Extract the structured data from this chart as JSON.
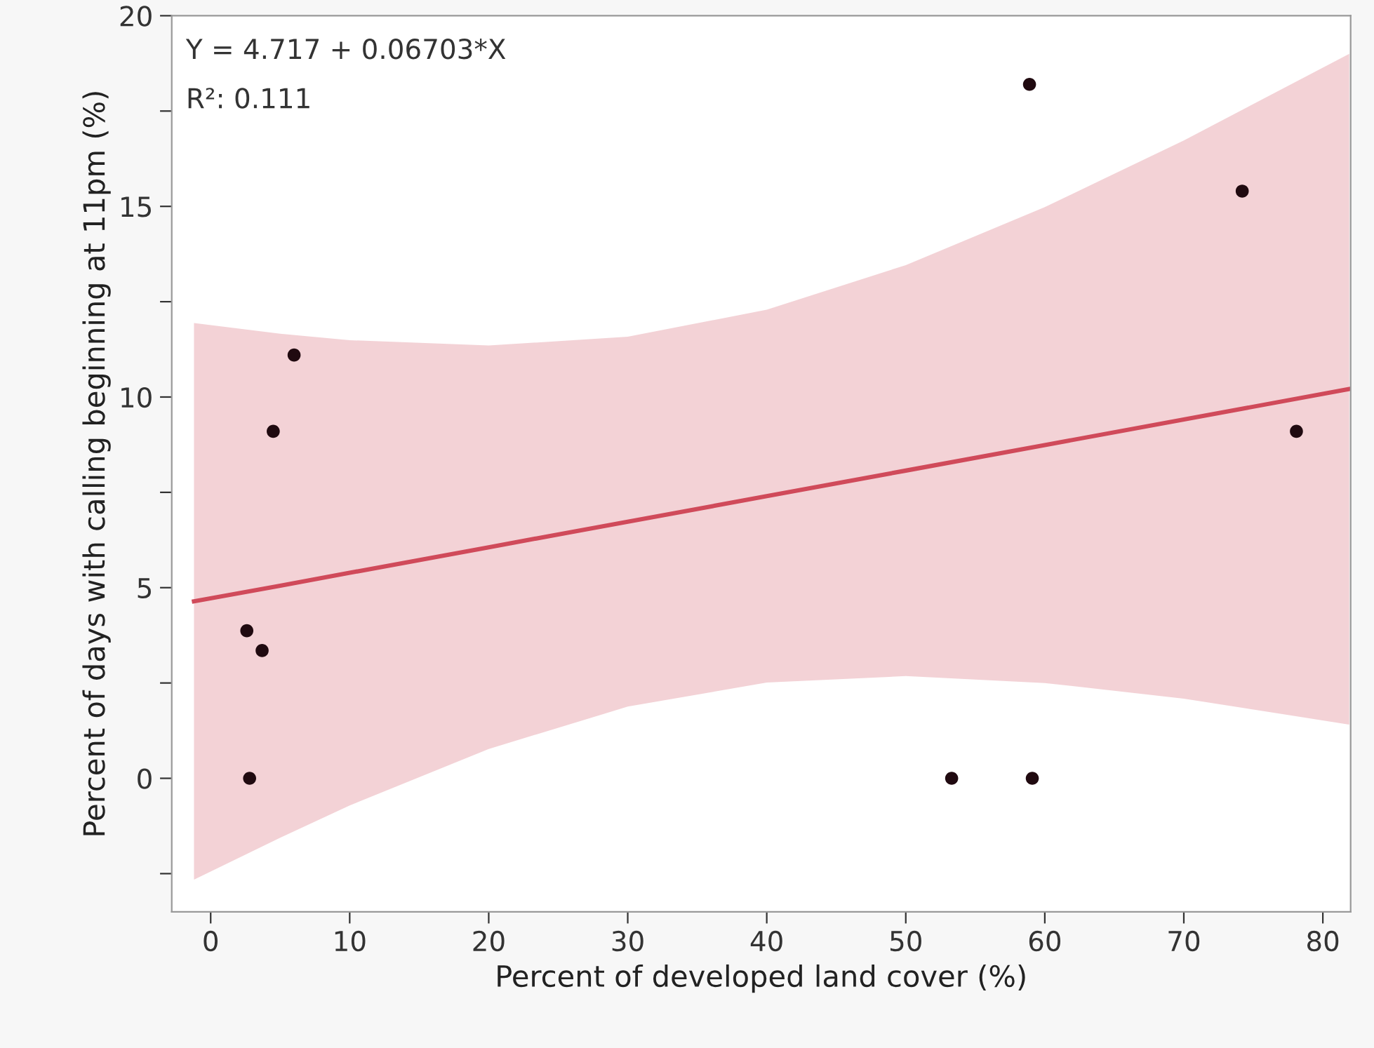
{
  "chart_data": {
    "type": "scatter",
    "xlabel": "Percent of developed land cover (%)",
    "ylabel": "Percent of days with calling beginning at 11pm (%)",
    "annotations": [
      "Y = 4.717 + 0.06703*X",
      "R²: 0.111"
    ],
    "xlim": [
      -2.8,
      82
    ],
    "ylim": [
      -3.5,
      20
    ],
    "xticks": [
      0,
      10,
      20,
      30,
      40,
      50,
      60,
      70,
      80
    ],
    "yticks": [
      {
        "value": -2.5,
        "label": null
      },
      0,
      {
        "value": 2.5,
        "label": null
      },
      5,
      {
        "value": 7.5,
        "label": null
      },
      10,
      {
        "value": 12.5,
        "label": null
      },
      15,
      {
        "value": 17.5,
        "label": null
      },
      20
    ],
    "grid": false,
    "legend": false,
    "marker": "circle",
    "series": [
      {
        "type": "line",
        "color": "#d04a5a",
        "line_style": "solid",
        "marker": "none",
        "x": [
          -1.2,
          5,
          10,
          20,
          30,
          40,
          50,
          60,
          70,
          81.9
        ],
        "values": [
          4.64,
          5.05,
          5.39,
          6.06,
          6.73,
          7.4,
          8.07,
          8.74,
          9.41,
          10.21
        ],
        "lower": [
          -2.66,
          -1.56,
          -0.71,
          0.77,
          1.88,
          2.51,
          2.68,
          2.5,
          2.09,
          1.41
        ],
        "upper": [
          11.94,
          11.66,
          11.49,
          11.35,
          11.58,
          12.29,
          13.46,
          14.98,
          16.73,
          19.0
        ]
      },
      {
        "color": "#200a10",
        "x": [
          2.6,
          3.7,
          2.8,
          4.5,
          6.0,
          53.3,
          59.1,
          58.9,
          74.2,
          78.1
        ],
        "values": [
          3.87,
          3.35,
          0,
          9.1,
          11.1,
          0,
          0,
          18.2,
          15.4,
          9.1
        ]
      }
    ]
  }
}
